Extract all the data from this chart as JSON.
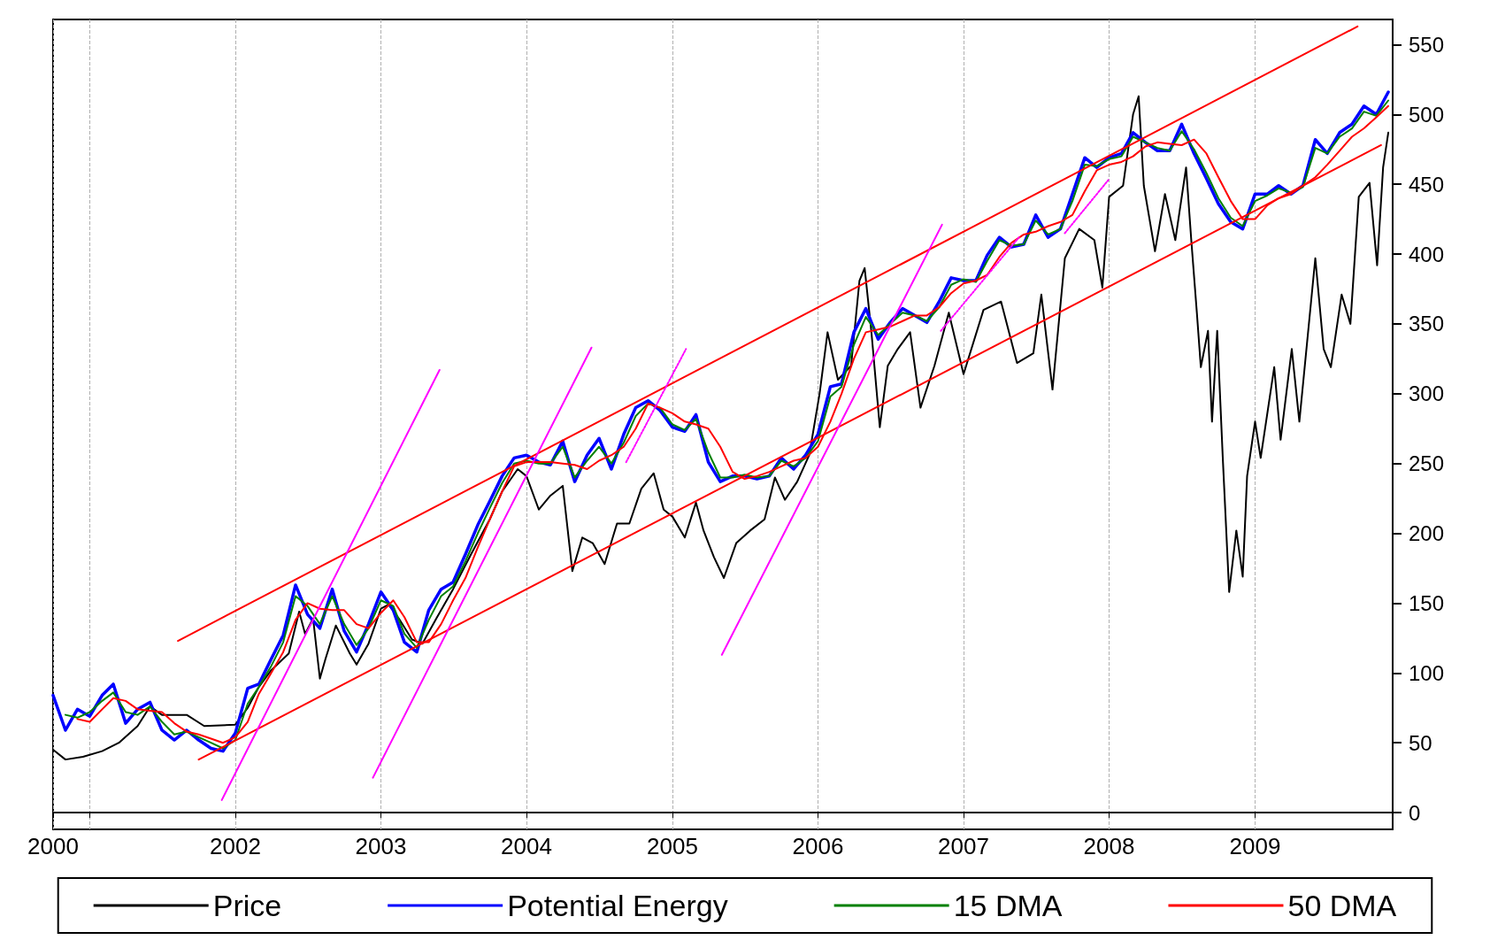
{
  "chart_data": {
    "type": "line",
    "marker": "none",
    "grid": "x",
    "legend": "bottom",
    "xlim": [
      "2000-10-01",
      "2009-12-12"
    ],
    "xticks": [
      {
        "value": "2000-10-01",
        "label": "2000"
      },
      {
        "value": "2001-01-01",
        "label": null
      },
      {
        "value": "2002-01-01",
        "label": "2002"
      },
      {
        "value": "2003-01-01",
        "label": "2003"
      },
      {
        "value": "2004-01-01",
        "label": "2004"
      },
      {
        "value": "2005-01-01",
        "label": "2005"
      },
      {
        "value": "2006-01-01",
        "label": "2006"
      },
      {
        "value": "2007-01-01",
        "label": "2007"
      },
      {
        "value": "2008-01-01",
        "label": "2008"
      },
      {
        "value": "2009-01-01",
        "label": "2009"
      }
    ],
    "ylim": [
      -12,
      568
    ],
    "yticks": [
      0,
      50,
      100,
      150,
      200,
      250,
      300,
      350,
      400,
      450,
      500,
      550
    ],
    "x": [
      "2000-10",
      "2000-11",
      "2000-12",
      "2001-01",
      "2001-02",
      "2001-03",
      "2001-04",
      "2001-05",
      "2001-06",
      "2001-07",
      "2001-08",
      "2001-09",
      "2001-10",
      "2001-11",
      "2001-12",
      "2002-01",
      "2002-02",
      "2002-03",
      "2002-04",
      "2002-05",
      "2002-06",
      "2002-07",
      "2002-08",
      "2002-09",
      "2002-10",
      "2002-11",
      "2002-12",
      "2003-01",
      "2003-02",
      "2003-03",
      "2003-04",
      "2003-05",
      "2003-06",
      "2003-07",
      "2003-08",
      "2003-09",
      "2003-10",
      "2003-11",
      "2003-12",
      "2004-01",
      "2004-02",
      "2004-03",
      "2004-04",
      "2004-05",
      "2004-06",
      "2004-07",
      "2004-08",
      "2004-09",
      "2004-10",
      "2004-11",
      "2004-12",
      "2005-01",
      "2005-02",
      "2005-03",
      "2005-04",
      "2005-05",
      "2005-06",
      "2005-07",
      "2005-08",
      "2005-09",
      "2005-10",
      "2005-11",
      "2005-12",
      "2006-01",
      "2006-02",
      "2006-03",
      "2006-04",
      "2006-05",
      "2006-06",
      "2006-07",
      "2006-08",
      "2006-09",
      "2006-10",
      "2006-11",
      "2006-12",
      "2007-01",
      "2007-02",
      "2007-03",
      "2007-04",
      "2007-05",
      "2007-06",
      "2007-07",
      "2007-08",
      "2007-09",
      "2007-10",
      "2007-11",
      "2007-12",
      "2008-01",
      "2008-02",
      "2008-03",
      "2008-04",
      "2008-05",
      "2008-06",
      "2008-07",
      "2008-08",
      "2008-09",
      "2008-10",
      "2008-11",
      "2008-12",
      "2009-01",
      "2009-02",
      "2009-03",
      "2009-04",
      "2009-05",
      "2009-06",
      "2009-07",
      "2009-08",
      "2009-09",
      "2009-10",
      "2009-11",
      "2009-12"
    ],
    "series": [
      {
        "name": "Price",
        "color": "#000000",
        "x": [
          "2000-10-01",
          "2000-11-01",
          "2000-12-15",
          "2001-02-01",
          "2001-03-15",
          "2001-05-01",
          "2001-06-01",
          "2001-07-01",
          "2001-09-01",
          "2001-10-15",
          "2002-01-01",
          "2002-02-01",
          "2002-03-01",
          "2002-04-01",
          "2002-05-15",
          "2002-06-10",
          "2002-06-25",
          "2002-07-15",
          "2002-08-01",
          "2002-08-15",
          "2002-09-10",
          "2002-10-15",
          "2002-11-01",
          "2002-12-01",
          "2003-01-01",
          "2003-01-20",
          "2003-02-15",
          "2003-03-20",
          "2003-04-15",
          "2003-05-20",
          "2003-07-01",
          "2003-08-15",
          "2003-10-01",
          "2003-11-01",
          "2003-12-10",
          "2004-01-01",
          "2004-02-01",
          "2004-03-01",
          "2004-04-01",
          "2004-04-25",
          "2004-05-20",
          "2004-06-15",
          "2004-07-15",
          "2004-08-15",
          "2004-09-15",
          "2004-10-15",
          "2004-11-15",
          "2004-12-10",
          "2005-01-01",
          "2005-02-01",
          "2005-03-01",
          "2005-03-20",
          "2005-04-15",
          "2005-05-10",
          "2005-06-10",
          "2005-07-15",
          "2005-08-20",
          "2005-09-15",
          "2005-10-10",
          "2005-11-10",
          "2005-12-10",
          "2006-01-05",
          "2006-01-25",
          "2006-02-20",
          "2006-03-25",
          "2006-04-15",
          "2006-04-28",
          "2006-05-15",
          "2006-06-05",
          "2006-06-25",
          "2006-07-20",
          "2006-08-20",
          "2006-09-15",
          "2006-10-20",
          "2006-11-25",
          "2007-01-01",
          "2007-02-20",
          "2007-04-05",
          "2007-05-15",
          "2007-06-25",
          "2007-07-15",
          "2007-08-12",
          "2007-09-12",
          "2007-10-18",
          "2007-11-25",
          "2007-12-15",
          "2008-01-01",
          "2008-02-05",
          "2008-03-01",
          "2008-03-15",
          "2008-03-28",
          "2008-04-25",
          "2008-05-20",
          "2008-06-15",
          "2008-07-12",
          "2008-07-25",
          "2008-08-08",
          "2008-08-18",
          "2008-09-05",
          "2008-09-15",
          "2008-09-28",
          "2008-10-12",
          "2008-10-28",
          "2008-11-15",
          "2008-12-01",
          "2008-12-12",
          "2009-01-01",
          "2009-01-15",
          "2009-02-18",
          "2009-03-06",
          "2009-04-03",
          "2009-04-22",
          "2009-06-01",
          "2009-06-22",
          "2009-07-10",
          "2009-08-06",
          "2009-08-28",
          "2009-09-18",
          "2009-10-15",
          "2009-11-03",
          "2009-11-18",
          "2009-12-01"
        ],
        "values": [
          45,
          38,
          40,
          44,
          50,
          62,
          76,
          70,
          70,
          62,
          63,
          75,
          90,
          102,
          114,
          144,
          128,
          139,
          96,
          110,
          134,
          114,
          106,
          121,
          146,
          149,
          139,
          124,
          121,
          139,
          160,
          185,
          210,
          230,
          246,
          241,
          217,
          227,
          234,
          173,
          197,
          193,
          178,
          207,
          207,
          232,
          243,
          217,
          212,
          197,
          222,
          202,
          183,
          168,
          193,
          202,
          210,
          240,
          224,
          237,
          256,
          300,
          344,
          310,
          320,
          381,
          390,
          344,
          276,
          320,
          332,
          344,
          290,
          320,
          358,
          314,
          360,
          366,
          322,
          329,
          371,
          303,
          397,
          418,
          410,
          376,
          441,
          449,
          500,
          513,
          449,
          402,
          443,
          410,
          462,
          410,
          358,
          319,
          345,
          280,
          345,
          254,
          158,
          202,
          169,
          241,
          280,
          254,
          319,
          267,
          332,
          280,
          397,
          332,
          319,
          371,
          350,
          441,
          451,
          392,
          462,
          487
        ]
      },
      {
        "name": "Potential Energy",
        "color": "#0000ff",
        "values": [
          84,
          59,
          74,
          69,
          84,
          92,
          64,
          74,
          79,
          59,
          52,
          59,
          52,
          46,
          44,
          57,
          89,
          92,
          110,
          127,
          163,
          142,
          132,
          160,
          130,
          115,
          135,
          158,
          145,
          122,
          115,
          145,
          160,
          165,
          185,
          206,
          223,
          241,
          254,
          256,
          251,
          249,
          266,
          237,
          256,
          268,
          246,
          271,
          290,
          295,
          288,
          276,
          273,
          285,
          251,
          237,
          241,
          241,
          239,
          241,
          254,
          246,
          256,
          271,
          305,
          307,
          344,
          361,
          339,
          351,
          361,
          356,
          351,
          366,
          383,
          381,
          381,
          399,
          412,
          405,
          407,
          428,
          412,
          418,
          443,
          469,
          462,
          469,
          472,
          487,
          480,
          474,
          474,
          493,
          472,
          454,
          436,
          423,
          418,
          443,
          443,
          449,
          443,
          449,
          482,
          472,
          487,
          493,
          506,
          500,
          516
        ]
      },
      {
        "name": "15 DMA",
        "color": "#008000",
        "values": [
          null,
          70,
          68,
          72,
          80,
          86,
          72,
          70,
          76,
          65,
          56,
          58,
          54,
          50,
          46,
          52,
          78,
          90,
          105,
          122,
          155,
          148,
          135,
          155,
          135,
          120,
          132,
          152,
          148,
          128,
          118,
          138,
          155,
          162,
          180,
          200,
          218,
          236,
          250,
          252,
          250,
          250,
          262,
          240,
          252,
          262,
          250,
          265,
          284,
          293,
          290,
          278,
          274,
          282,
          258,
          240,
          240,
          242,
          240,
          241,
          252,
          248,
          254,
          266,
          298,
          305,
          335,
          355,
          342,
          350,
          358,
          356,
          352,
          362,
          378,
          382,
          380,
          395,
          410,
          406,
          407,
          424,
          414,
          418,
          438,
          464,
          463,
          468,
          470,
          484,
          480,
          476,
          474,
          488,
          475,
          458,
          440,
          426,
          420,
          438,
          442,
          447,
          444,
          448,
          476,
          472,
          484,
          490,
          502,
          499,
          510
        ]
      },
      {
        "name": "50 DMA",
        "color": "#ff0000",
        "values": [
          null,
          null,
          67,
          65,
          74,
          82,
          80,
          74,
          73,
          72,
          64,
          58,
          56,
          53,
          50,
          54,
          65,
          85,
          100,
          115,
          138,
          150,
          146,
          145,
          145,
          135,
          132,
          143,
          152,
          140,
          122,
          122,
          135,
          152,
          168,
          190,
          210,
          230,
          248,
          251,
          251,
          251,
          250,
          249,
          246,
          252,
          256,
          262,
          275,
          293,
          290,
          286,
          280,
          278,
          275,
          262,
          244,
          239,
          241,
          244,
          248,
          252,
          254,
          262,
          280,
          300,
          325,
          344,
          346,
          348,
          352,
          356,
          356,
          362,
          372,
          379,
          381,
          385,
          398,
          408,
          414,
          416,
          420,
          423,
          428,
          445,
          460,
          464,
          466,
          470,
          477,
          480,
          479,
          478,
          482,
          472,
          455,
          438,
          425,
          425,
          435,
          440,
          443,
          449,
          455,
          464,
          474,
          484,
          490,
          498,
          506
        ]
      },
      {
        "color": "#ff0000",
        "x": [
          "2001-08-10",
          "2009-09-15"
        ],
        "values": [
          123,
          563
        ]
      },
      {
        "color": "#ff0000",
        "x": [
          "2001-10-01",
          "2009-11-13"
        ],
        "values": [
          38,
          478
        ]
      },
      {
        "color": "#ff00ff",
        "x": [
          "2001-11-28",
          "2003-05-28"
        ],
        "values": [
          9,
          317
        ]
      },
      {
        "color": "#ff00ff",
        "x": [
          "2002-12-12",
          "2004-06-12"
        ],
        "values": [
          25,
          333
        ]
      },
      {
        "color": "#ff00ff",
        "x": [
          "2005-05-05",
          "2006-11-08"
        ],
        "values": [
          113,
          421
        ]
      },
      {
        "color": "#ff00ff",
        "line_style": "dotted",
        "x": [
          "2004-09-07",
          "2005-02-04"
        ],
        "values": [
          251,
          332
        ]
      },
      {
        "color": "#ff00ff",
        "line_style": "dotted",
        "x": [
          "2006-11-05",
          "2007-05-20"
        ],
        "values": [
          345,
          412
        ]
      },
      {
        "color": "#ff00ff",
        "line_style": "dotted",
        "x": [
          "2007-09-12",
          "2007-12-30"
        ],
        "values": [
          415,
          453
        ]
      }
    ]
  }
}
